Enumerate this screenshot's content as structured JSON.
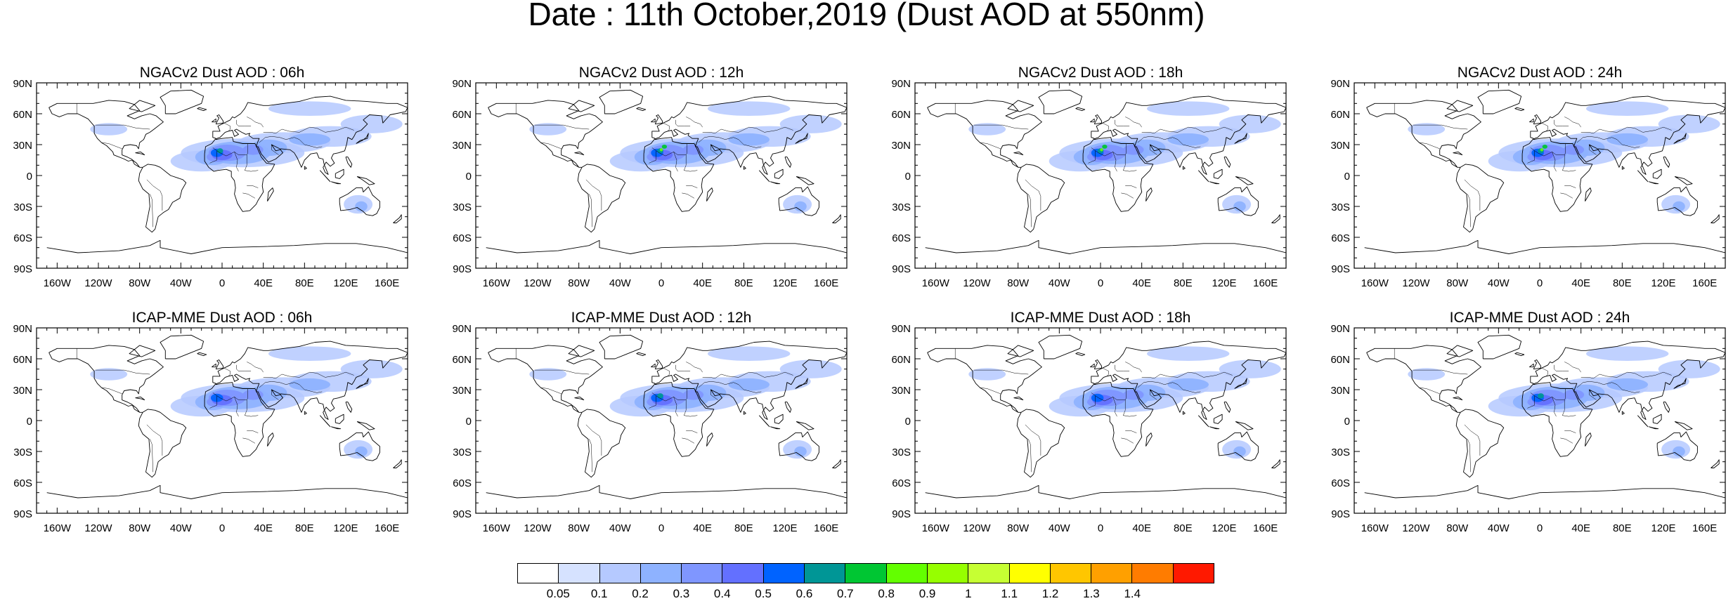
{
  "title": "Date : 11th October,2019 (Dust AOD at 550nm)",
  "lat_ticks": [
    "90N",
    "60N",
    "30N",
    "0",
    "30S",
    "60S",
    "90S"
  ],
  "lon_ticks": [
    "160W",
    "120W",
    "80W",
    "40W",
    "0",
    "40E",
    "80E",
    "120E",
    "160E"
  ],
  "panels": [
    {
      "title": "NGACv2 Dust AOD : 06h",
      "max_level": 0.6
    },
    {
      "title": "NGACv2 Dust AOD : 12h",
      "max_level": 0.8
    },
    {
      "title": "NGACv2 Dust AOD : 18h",
      "max_level": 0.8
    },
    {
      "title": "NGACv2 Dust AOD : 24h",
      "max_level": 0.8
    },
    {
      "title": "ICAP-MME Dust AOD : 06h",
      "max_level": 0.5
    },
    {
      "title": "ICAP-MME Dust AOD : 12h",
      "max_level": 0.6
    },
    {
      "title": "ICAP-MME Dust AOD : 18h",
      "max_level": 0.5
    },
    {
      "title": "ICAP-MME Dust AOD : 24h",
      "max_level": 0.6
    }
  ],
  "colorbar": {
    "labels": [
      "0.05",
      "0.1",
      "0.2",
      "0.3",
      "0.4",
      "0.5",
      "0.6",
      "0.7",
      "0.8",
      "0.9",
      "1",
      "1.1",
      "1.2",
      "1.3",
      "1.4"
    ],
    "colors": [
      "#ffffff",
      "#d6e2ff",
      "#b5c9ff",
      "#8eb2ff",
      "#7f96ff",
      "#6370ff",
      "#0063ff",
      "#009696",
      "#00c633",
      "#63ff00",
      "#96ff00",
      "#c6ff33",
      "#ffff00",
      "#ffc600",
      "#ffa000",
      "#ff7c00",
      "#ff1900"
    ]
  }
}
